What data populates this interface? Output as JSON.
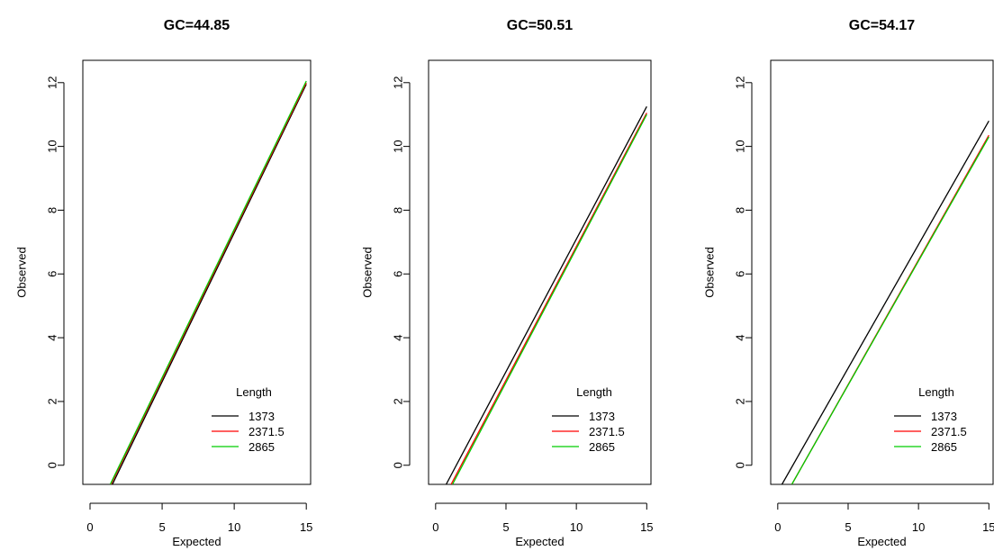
{
  "chart_data": [
    {
      "type": "line",
      "title": "GC=44.85",
      "xlabel": "Expected",
      "ylabel": "Observed",
      "xlim": [
        -0.5,
        15.3
      ],
      "ylim": [
        -0.6,
        12.7
      ],
      "xticks": [
        0,
        5,
        10,
        15
      ],
      "yticks": [
        0,
        2,
        4,
        6,
        8,
        10,
        12
      ],
      "legend": {
        "title": "Length",
        "position": "bottom-right"
      },
      "series": [
        {
          "name": "1373",
          "color": "#000000",
          "x": [
            1.55,
            15.0
          ],
          "y": [
            -0.6,
            11.95
          ]
        },
        {
          "name": "2371.5",
          "color": "#ff0000",
          "x": [
            1.45,
            15.0
          ],
          "y": [
            -0.6,
            12.0
          ]
        },
        {
          "name": "2865",
          "color": "#00cd00",
          "x": [
            1.4,
            15.0
          ],
          "y": [
            -0.6,
            12.05
          ]
        }
      ]
    },
    {
      "type": "line",
      "title": "GC=50.51",
      "xlabel": "Expected",
      "ylabel": "Observed",
      "xlim": [
        -0.5,
        15.3
      ],
      "ylim": [
        -0.6,
        12.7
      ],
      "xticks": [
        0,
        5,
        10,
        15
      ],
      "yticks": [
        0,
        2,
        4,
        6,
        8,
        10,
        12
      ],
      "legend": {
        "title": "Length",
        "position": "bottom-right"
      },
      "series": [
        {
          "name": "1373",
          "color": "#000000",
          "x": [
            0.75,
            15.0
          ],
          "y": [
            -0.6,
            11.25
          ]
        },
        {
          "name": "2371.5",
          "color": "#ff0000",
          "x": [
            1.1,
            15.0
          ],
          "y": [
            -0.6,
            11.05
          ]
        },
        {
          "name": "2865",
          "color": "#00cd00",
          "x": [
            1.2,
            15.0
          ],
          "y": [
            -0.6,
            11.0
          ]
        }
      ]
    },
    {
      "type": "line",
      "title": "GC=54.17",
      "xlabel": "Expected",
      "ylabel": "Observed",
      "xlim": [
        -0.5,
        15.3
      ],
      "ylim": [
        -0.6,
        12.7
      ],
      "xticks": [
        0,
        5,
        10,
        15
      ],
      "yticks": [
        0,
        2,
        4,
        6,
        8,
        10,
        12
      ],
      "legend": {
        "title": "Length",
        "position": "bottom-right"
      },
      "series": [
        {
          "name": "1373",
          "color": "#000000",
          "x": [
            0.3,
            15.0
          ],
          "y": [
            -0.6,
            10.8
          ]
        },
        {
          "name": "2371.5",
          "color": "#ff0000",
          "x": [
            1.0,
            15.0
          ],
          "y": [
            -0.6,
            10.35
          ]
        },
        {
          "name": "2865",
          "color": "#00cd00",
          "x": [
            1.0,
            15.0
          ],
          "y": [
            -0.6,
            10.3
          ]
        }
      ]
    }
  ]
}
